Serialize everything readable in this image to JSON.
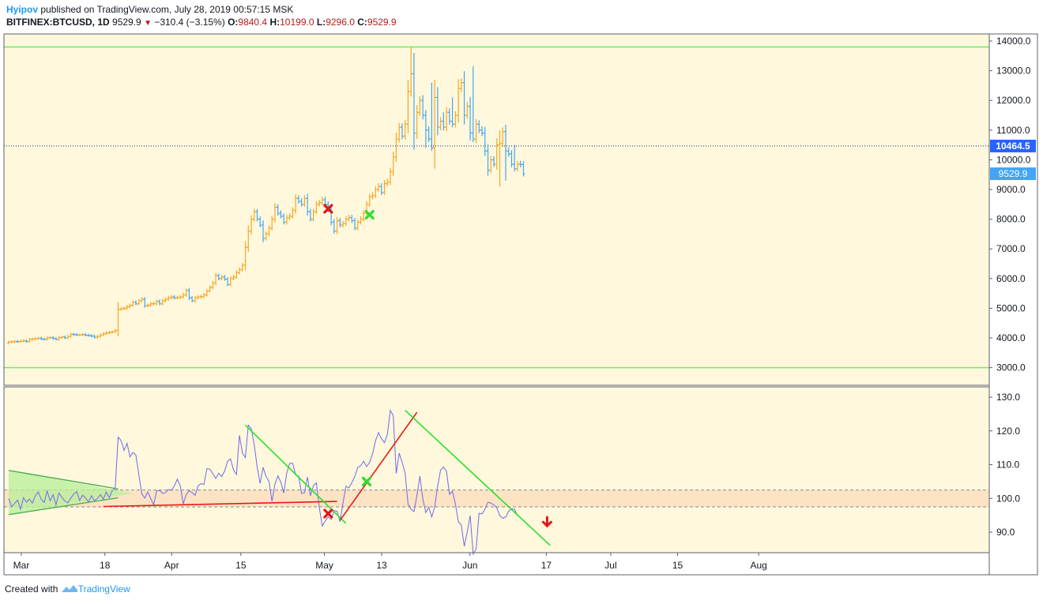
{
  "header": {
    "author": "Hyipov",
    "published": "published on TradingView.com, July 28, 2019 00:57:15 MSK",
    "symbol": "BITFINEX:BTCUSD, 1D",
    "last": "9529.9",
    "change": "−310.4 (−3.15%)",
    "o_label": "O:",
    "o_value": "9840.4",
    "h_label": "H:",
    "h_value": "10199.0",
    "l_label": "L:",
    "l_value": "9296.0",
    "c_label": "C:",
    "c_value": "9529.9"
  },
  "footer": {
    "created_with": "Created with",
    "brand": "TradingView"
  },
  "colors": {
    "background": "#fff8dc",
    "up_bar": "#f5a623",
    "down_bar": "#42a5f5",
    "level_line": "#66ee66",
    "oscillator": "#6b6bf0",
    "price_tag": "#2962ff",
    "band": "#fbe3c4"
  },
  "chart_data": [
    {
      "type": "ohlc",
      "xlabels": [
        "Mar",
        "18",
        "Apr",
        "15",
        "May",
        "13",
        "Jun",
        "17",
        "Jul",
        "15",
        "Aug"
      ],
      "yticks": [
        "14000.0",
        "13000.0",
        "12000.0",
        "11000.0",
        "10000.0",
        "9000.0",
        "8000.0",
        "7000.0",
        "6000.0",
        "5000.0",
        "4000.0",
        "3000.0"
      ],
      "ylim": [
        2700,
        14250
      ],
      "horizontal_levels": [
        13800,
        3000
      ],
      "dotted_level": 10464.5,
      "dotted_level_label": "10464.5",
      "last_price": 9529.9,
      "last_price_label": "9529.9",
      "closes": [
        3860,
        3870,
        3880,
        3875,
        3890,
        3900,
        3880,
        3950,
        3960,
        3970,
        3990,
        3960,
        3950,
        4000,
        4010,
        3980,
        3950,
        4010,
        4030,
        4000,
        4050,
        4120,
        4110,
        4100,
        4100,
        4110,
        4090,
        4080,
        4060,
        4020,
        4050,
        4100,
        4140,
        4170,
        4190,
        4200,
        4250,
        4960,
        4980,
        5000,
        5050,
        5100,
        5200,
        5150,
        5250,
        5300,
        5080,
        5100,
        5150,
        5150,
        5230,
        5150,
        5250,
        5300,
        5350,
        5380,
        5350,
        5360,
        5380,
        5450,
        5600,
        5350,
        5250,
        5350,
        5380,
        5390,
        5450,
        5580,
        5700,
        5850,
        6100,
        6000,
        6050,
        5980,
        5800,
        6000,
        6050,
        6200,
        6300,
        6450,
        7050,
        7600,
        8000,
        8250,
        8000,
        7800,
        7350,
        7500,
        7700,
        8000,
        8400,
        8200,
        8100,
        7900,
        8050,
        8100,
        8300,
        8700,
        8600,
        8500,
        8700,
        8250,
        8000,
        8250,
        8500,
        8550,
        8650,
        8500,
        8300,
        7900,
        7600,
        7950,
        7800,
        7850,
        8000,
        8050,
        7950,
        7700,
        7900,
        8000,
        8200,
        8500,
        8750,
        8800,
        9000,
        9100,
        8900,
        9200,
        9250,
        9600,
        10100,
        10700,
        11100,
        10800,
        11200,
        12300,
        12900,
        10900,
        11600,
        12000,
        11500,
        11000,
        10700,
        10400,
        12100,
        11100,
        11300,
        11100,
        11600,
        11300,
        11200,
        11500,
        12400,
        12600,
        11500,
        11800,
        10900,
        10700,
        11200,
        11000,
        10900,
        10300,
        9650,
        10000,
        9850,
        10500,
        10550,
        10950,
        10300,
        10200,
        9850,
        9700,
        9850,
        9840,
        9529.9
      ],
      "signals": [
        {
          "day": 108,
          "kind": "sell",
          "value": 8350
        },
        {
          "day": 122,
          "kind": "buy",
          "value": 8150
        }
      ]
    },
    {
      "type": "line",
      "yticks": [
        "130.0",
        "120.0",
        "110.0",
        "100.0",
        "90.0"
      ],
      "ylim": [
        83.5,
        131.5
      ],
      "band": [
        97.5,
        102.5
      ],
      "values": [
        100,
        97.5,
        98.5,
        99.5,
        96.8,
        100.2,
        98.9,
        99.8,
        98.6,
        100.8,
        101.9,
        99.7,
        98.8,
        102.2,
        99.3,
        101.1,
        98.1,
        101.6,
        100.3,
        99.2,
        98.7,
        100.1,
        101.3,
        102,
        99.4,
        101,
        100.1,
        98.9,
        100.8,
        99.3,
        100,
        101.1,
        99.8,
        101.9,
        100.2,
        102.3,
        103,
        118.2,
        117.1,
        114.2,
        116.3,
        112.3,
        113.6,
        112.8,
        107,
        101.3,
        100.1,
        101.9,
        100,
        98.1,
        102.2,
        102.4,
        101.5,
        101.7,
        102.6,
        102.4,
        103.7,
        105.7,
        103.7,
        98.4,
        101.1,
        102.3,
        101.7,
        100.9,
        103.7,
        104.4,
        104.1,
        108.8,
        108.7,
        107.3,
        105.9,
        107.5,
        106.5,
        108.1,
        111,
        111.7,
        108.4,
        107.1,
        118.7,
        113.5,
        112.1,
        121.7,
        120.7,
        115.9,
        109.3,
        104.4,
        109.2,
        106.5,
        105,
        99.1,
        104.2,
        106.7,
        104.8,
        101.6,
        107.6,
        110.4,
        110.4,
        106.9,
        106.6,
        101.5,
        101.7,
        106.3,
        100.8,
        103.8,
        104.6,
        97.3,
        91.8,
        93.3,
        94.5,
        93.8,
        96.4,
        96.2,
        93.1,
        98.6,
        103.6,
        103.1,
        104.7,
        106.5,
        109.2,
        109.7,
        111,
        109.4,
        110.7,
        113.2,
        117.1,
        119.5,
        117.7,
        116.5,
        118.9,
        126.1,
        124.5,
        107.4,
        113.4,
        110.7,
        107.5,
        98.3,
        96.8,
        96.1,
        100.9,
        106.6,
        99.8,
        95.8,
        97.4,
        94.5,
        97.4,
        103.6,
        108.4,
        109.3,
        108,
        101.2,
        102.1,
        98.4,
        93.1,
        92.1,
        85.8,
        90.1,
        94.9,
        83.5,
        85,
        95.6,
        95.4,
        96.8,
        98.9,
        98.6,
        98.1,
        97.2,
        94.9,
        94.1,
        94.5,
        96.2,
        96.9,
        96.8,
        94.8
      ],
      "trendlines": [
        {
          "color": "green",
          "from": [
            0,
            108.3
          ],
          "to": [
            37,
            102.8
          ]
        },
        {
          "color": "green",
          "from": [
            0,
            95.2
          ],
          "to": [
            37,
            100.2
          ]
        },
        {
          "color": "red",
          "from": [
            32,
            97.6
          ],
          "to": [
            111,
            99.1
          ]
        },
        {
          "color": "green",
          "from": [
            80,
            121.7
          ],
          "to": [
            114,
            92.6
          ]
        },
        {
          "color": "red",
          "from": [
            112,
            93.5
          ],
          "to": [
            138,
            125.5
          ]
        },
        {
          "color": "green",
          "from": [
            134,
            126.1
          ],
          "to": [
            183,
            86.1
          ]
        }
      ],
      "signals": [
        {
          "day": 108,
          "kind": "sell",
          "value": 95.5
        },
        {
          "day": 121,
          "kind": "buy",
          "value": 105
        },
        {
          "day": 182,
          "kind": "down-arrow",
          "value": 93
        }
      ]
    }
  ]
}
